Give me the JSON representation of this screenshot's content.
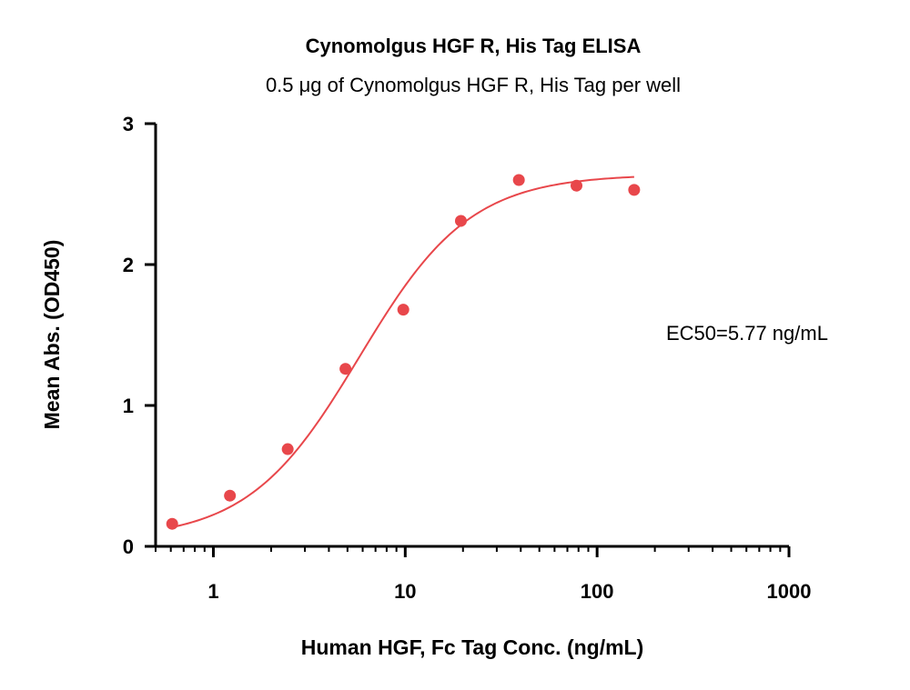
{
  "chart_data": {
    "type": "scatter",
    "title": "Cynomolgus HGF R, His Tag ELISA",
    "subtitle": "0.5 μg of Cynomolgus HGF R, His Tag per well",
    "xlabel": "Human HGF, Fc Tag Conc. (ng/mL)",
    "ylabel": "Mean Abs. (OD450)",
    "x_scale": "log",
    "xlim": [
      0.5,
      1000
    ],
    "ylim": [
      0,
      3
    ],
    "x_ticks": [
      1,
      10,
      100,
      1000
    ],
    "x_tick_labels": [
      "1",
      "10",
      "100",
      "1000"
    ],
    "y_ticks": [
      0,
      1,
      2,
      3
    ],
    "y_tick_labels": [
      "0",
      "1",
      "2",
      "3"
    ],
    "grid": false,
    "color": "#e8474b",
    "series": [
      {
        "x": [
          0.61,
          1.22,
          2.44,
          4.88,
          9.77,
          19.5,
          39.1,
          78.1,
          156
        ],
        "y": [
          0.16,
          0.36,
          0.69,
          1.26,
          1.68,
          2.31,
          2.6,
          2.56,
          2.53
        ]
      }
    ],
    "fit": {
      "model": "4PL",
      "bottom": 0.05,
      "top": 2.64,
      "ec50": 5.77,
      "hill": 1.5,
      "x_range": [
        0.61,
        156
      ]
    },
    "annotation": "EC50=5.77 ng/mL"
  }
}
